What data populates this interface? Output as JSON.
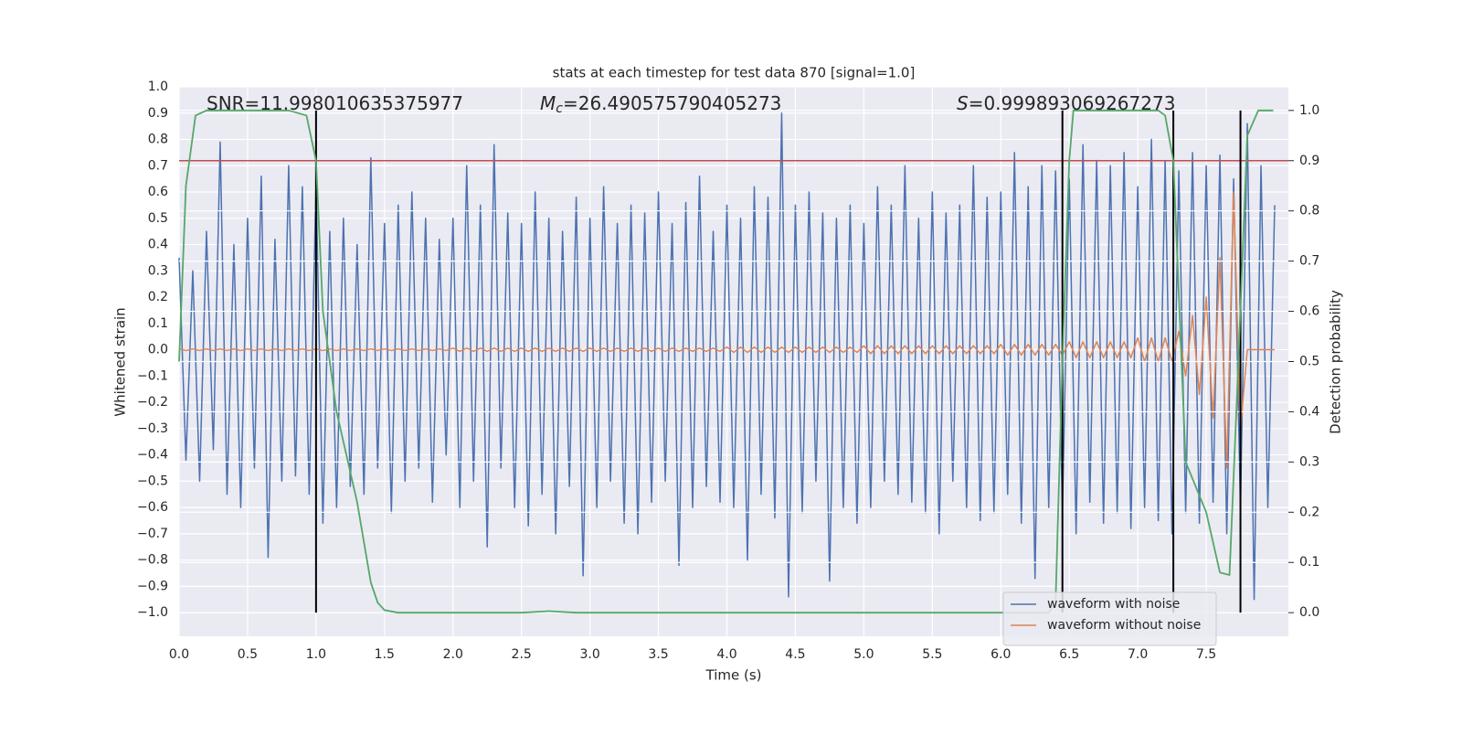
{
  "chart_data": {
    "type": "line",
    "title": "stats at each timestep for test data 870 [signal=1.0]",
    "xlabel": "Time (s)",
    "ylabel": "Whitened strain",
    "y2label": "Detection probability",
    "grid": true,
    "legend": "lower right",
    "xlim": [
      0,
      8.1
    ],
    "xticks": [
      {
        "value": 0,
        "label": "0.0"
      },
      {
        "value": 0.5,
        "label": "0.5"
      },
      {
        "value": 1,
        "label": "1.0"
      },
      {
        "value": 1.5,
        "label": "1.5"
      },
      {
        "value": 2,
        "label": "2.0"
      },
      {
        "value": 2.5,
        "label": "2.5"
      },
      {
        "value": 3,
        "label": "3.0"
      },
      {
        "value": 3.5,
        "label": "3.5"
      },
      {
        "value": 4,
        "label": "4.0"
      },
      {
        "value": 4.5,
        "label": "4.5"
      },
      {
        "value": 5,
        "label": "5.0"
      },
      {
        "value": 5.5,
        "label": "5.5"
      },
      {
        "value": 6,
        "label": "6.0"
      },
      {
        "value": 6.5,
        "label": "6.5"
      },
      {
        "value": 7,
        "label": "7.0"
      },
      {
        "value": 7.5,
        "label": "7.5"
      }
    ],
    "ylim": [
      -1.09,
      1.0
    ],
    "yticks": [
      {
        "value": -1,
        "label": "−1.0"
      },
      {
        "value": -0.9,
        "label": "−0.9"
      },
      {
        "value": -0.8,
        "label": "−0.8"
      },
      {
        "value": -0.7,
        "label": "−0.7"
      },
      {
        "value": -0.6,
        "label": "−0.6"
      },
      {
        "value": -0.5,
        "label": "−0.5"
      },
      {
        "value": -0.4,
        "label": "−0.4"
      },
      {
        "value": -0.3,
        "label": "−0.3"
      },
      {
        "value": -0.2,
        "label": "−0.2"
      },
      {
        "value": -0.1,
        "label": "−0.1"
      },
      {
        "value": 0,
        "label": "0.0"
      },
      {
        "value": 0.1,
        "label": "0.1"
      },
      {
        "value": 0.2,
        "label": "0.2"
      },
      {
        "value": 0.3,
        "label": "0.3"
      },
      {
        "value": 0.4,
        "label": "0.4"
      },
      {
        "value": 0.5,
        "label": "0.5"
      },
      {
        "value": 0.6,
        "label": "0.6"
      },
      {
        "value": 0.7,
        "label": "0.7"
      },
      {
        "value": 0.8,
        "label": "0.8"
      },
      {
        "value": 0.9,
        "label": "0.9"
      },
      {
        "value": 1,
        "label": "1.0"
      }
    ],
    "y2lim": [
      -0.047,
      1.047
    ],
    "y2ticks": [
      {
        "value": 0,
        "label": "0.0"
      },
      {
        "value": 0.1,
        "label": "0.1"
      },
      {
        "value": 0.2,
        "label": "0.2"
      },
      {
        "value": 0.3,
        "label": "0.3"
      },
      {
        "value": 0.4,
        "label": "0.4"
      },
      {
        "value": 0.5,
        "label": "0.5"
      },
      {
        "value": 0.6,
        "label": "0.6"
      },
      {
        "value": 0.7,
        "label": "0.7"
      },
      {
        "value": 0.8,
        "label": "0.8"
      },
      {
        "value": 0.9,
        "label": "0.9"
      },
      {
        "value": 1,
        "label": "1.0"
      }
    ],
    "x": [
      0,
      0.05,
      0.1,
      0.15,
      0.2,
      0.25,
      0.3,
      0.35,
      0.4,
      0.45,
      0.5,
      0.55,
      0.6,
      0.65,
      0.7,
      0.75,
      0.8,
      0.85,
      0.9,
      0.95,
      1,
      1.05,
      1.1,
      1.15,
      1.2,
      1.25,
      1.3,
      1.35,
      1.4,
      1.45,
      1.5,
      1.55,
      1.6,
      1.65,
      1.7,
      1.75,
      1.8,
      1.85,
      1.9,
      1.95,
      2,
      2.05,
      2.1,
      2.15,
      2.2,
      2.25,
      2.3,
      2.35,
      2.4,
      2.45,
      2.5,
      2.55,
      2.6,
      2.65,
      2.7,
      2.75,
      2.8,
      2.85,
      2.9,
      2.95,
      3,
      3.05,
      3.1,
      3.15,
      3.2,
      3.25,
      3.3,
      3.35,
      3.4,
      3.45,
      3.5,
      3.55,
      3.6,
      3.65,
      3.7,
      3.75,
      3.8,
      3.85,
      3.9,
      3.95,
      4,
      4.05,
      4.1,
      4.15,
      4.2,
      4.25,
      4.3,
      4.35,
      4.4,
      4.45,
      4.5,
      4.55,
      4.6,
      4.65,
      4.7,
      4.75,
      4.8,
      4.85,
      4.9,
      4.95,
      5,
      5.05,
      5.1,
      5.15,
      5.2,
      5.25,
      5.3,
      5.35,
      5.4,
      5.45,
      5.5,
      5.55,
      5.6,
      5.65,
      5.7,
      5.75,
      5.8,
      5.85,
      5.9,
      5.95,
      6,
      6.05,
      6.1,
      6.15,
      6.2,
      6.25,
      6.3,
      6.35,
      6.4,
      6.45,
      6.5,
      6.55,
      6.6,
      6.65,
      6.7,
      6.75,
      6.8,
      6.85,
      6.9,
      6.95,
      7,
      7.05,
      7.1,
      7.15,
      7.2,
      7.25,
      7.3,
      7.35,
      7.4,
      7.45,
      7.5,
      7.55,
      7.6,
      7.65,
      7.7,
      7.75,
      7.8,
      7.85,
      7.9,
      7.95,
      8
    ],
    "series": [
      {
        "name": "waveform with noise",
        "color": "#4c72b0",
        "values": [
          0.35,
          -0.42,
          0.3,
          -0.5,
          0.45,
          -0.38,
          0.79,
          -0.55,
          0.4,
          -0.6,
          0.5,
          -0.45,
          0.66,
          -0.79,
          0.42,
          -0.5,
          0.7,
          -0.48,
          0.62,
          -0.55,
          0.64,
          -0.66,
          0.45,
          -0.6,
          0.5,
          -0.52,
          0.4,
          -0.55,
          0.73,
          -0.45,
          0.48,
          -0.62,
          0.55,
          -0.5,
          0.6,
          -0.45,
          0.5,
          -0.58,
          0.42,
          -0.4,
          0.5,
          -0.6,
          0.7,
          -0.5,
          0.55,
          -0.75,
          0.78,
          -0.45,
          0.52,
          -0.6,
          0.48,
          -0.67,
          0.6,
          -0.55,
          0.5,
          -0.7,
          0.45,
          -0.52,
          0.58,
          -0.86,
          0.5,
          -0.6,
          0.62,
          -0.5,
          0.48,
          -0.66,
          0.55,
          -0.7,
          0.52,
          -0.58,
          0.6,
          -0.5,
          0.48,
          -0.82,
          0.56,
          -0.6,
          0.66,
          -0.52,
          0.45,
          -0.58,
          0.55,
          -0.6,
          0.5,
          -0.8,
          0.62,
          -0.55,
          0.58,
          -0.64,
          0.9,
          -0.94,
          0.55,
          -0.62,
          0.6,
          -0.5,
          0.52,
          -0.88,
          0.5,
          -0.6,
          0.55,
          -0.66,
          0.48,
          -0.6,
          0.62,
          -0.5,
          0.55,
          -0.55,
          0.7,
          -0.58,
          0.5,
          -0.62,
          0.6,
          -0.7,
          0.52,
          -0.5,
          0.55,
          -0.6,
          0.7,
          -0.65,
          0.58,
          -0.62,
          0.6,
          -0.55,
          0.75,
          -0.66,
          0.62,
          -0.87,
          0.7,
          -0.6,
          0.68,
          -0.62,
          0.65,
          -0.7,
          0.78,
          -0.58,
          0.72,
          -0.66,
          0.7,
          -0.62,
          0.75,
          -0.68,
          0.62,
          -0.6,
          0.8,
          -0.65,
          0.72,
          -0.7,
          0.68,
          -0.62,
          0.75,
          -0.66,
          0.7,
          -0.58,
          0.74,
          -0.7,
          0.65,
          -0.6,
          0.86,
          -0.95,
          0.7,
          -0.6,
          0.55
        ]
      },
      {
        "name": "waveform without noise",
        "color": "#dd8452",
        "values": [
          0.003,
          -0.003,
          0.003,
          -0.003,
          0.003,
          -0.003,
          0.003,
          -0.003,
          0.003,
          -0.003,
          0.003,
          -0.003,
          0.003,
          -0.003,
          0.003,
          -0.003,
          0.003,
          -0.003,
          0.003,
          -0.003,
          0.003,
          -0.003,
          0.003,
          -0.003,
          0.003,
          -0.003,
          0.003,
          -0.003,
          0.003,
          -0.003,
          0.003,
          -0.003,
          0.003,
          -0.003,
          0.003,
          -0.003,
          0.003,
          -0.003,
          0.003,
          -0.003,
          0.006,
          -0.006,
          0.006,
          -0.006,
          0.006,
          -0.006,
          0.006,
          -0.006,
          0.006,
          -0.006,
          0.006,
          -0.006,
          0.006,
          -0.006,
          0.006,
          -0.006,
          0.006,
          -0.006,
          0.006,
          -0.006,
          0.006,
          -0.006,
          0.006,
          -0.006,
          0.006,
          -0.006,
          0.006,
          -0.006,
          0.006,
          -0.006,
          0.006,
          -0.006,
          0.006,
          -0.006,
          0.006,
          -0.006,
          0.006,
          -0.006,
          0.006,
          -0.006,
          0.01,
          -0.01,
          0.01,
          -0.01,
          0.01,
          -0.01,
          0.01,
          -0.01,
          0.01,
          -0.01,
          0.01,
          -0.01,
          0.01,
          -0.01,
          0.01,
          -0.01,
          0.01,
          -0.01,
          0.01,
          -0.01,
          0.015,
          -0.015,
          0.015,
          -0.015,
          0.015,
          -0.015,
          0.015,
          -0.015,
          0.015,
          -0.015,
          0.015,
          -0.015,
          0.015,
          -0.015,
          0.015,
          -0.015,
          0.015,
          -0.015,
          0.015,
          -0.015,
          0.02,
          -0.02,
          0.02,
          -0.02,
          0.02,
          -0.02,
          0.02,
          -0.02,
          0.02,
          -0.02,
          0.03,
          -0.03,
          0.03,
          -0.03,
          0.03,
          -0.03,
          0.03,
          -0.03,
          0.03,
          -0.03,
          0.045,
          -0.045,
          0.045,
          -0.045,
          0.045,
          -0.045,
          0.07,
          -0.1,
          0.13,
          -0.17,
          0.2,
          -0.26,
          0.35,
          -0.45,
          0.6,
          -0.3,
          0,
          0,
          0,
          0,
          0
        ]
      },
      {
        "axis": "y2",
        "color": "#55a868",
        "x": [
          0,
          0.05,
          0.12,
          0.2,
          0.8,
          0.93,
          1,
          1.05,
          1.15,
          1.3,
          1.4,
          1.45,
          1.5,
          1.6,
          2.5,
          2.7,
          2.9,
          6.35,
          6.4,
          6.45,
          6.5,
          6.53,
          7.15,
          7.2,
          7.26,
          7.35,
          7.5,
          7.6,
          7.67,
          7.72,
          7.8,
          7.88,
          7.99
        ],
        "values": [
          0.5,
          0.85,
          0.99,
          1,
          1,
          0.99,
          0.9,
          0.6,
          0.4,
          0.22,
          0.06,
          0.02,
          0.005,
          0,
          0,
          0.003,
          0,
          0,
          0.02,
          0.5,
          0.9,
          1,
          1,
          0.99,
          0.9,
          0.3,
          0.2,
          0.08,
          0.075,
          0.4,
          0.95,
          1,
          1
        ]
      }
    ],
    "threshold": {
      "value": 0.9,
      "axis": "y2",
      "color": "#c44e52"
    },
    "vlines": {
      "x": [
        1.0,
        6.45,
        7.26,
        7.75
      ],
      "ymin": 0,
      "ymax": 1.0,
      "axis": "y2",
      "color": "#000000"
    },
    "annotations": [
      {
        "text": "SNR=11.998010635375977"
      },
      {
        "italic": "M",
        "sub": "c",
        "text": "=26.490575790405273"
      },
      {
        "italic": "S",
        "text": "=0.999893069267273"
      }
    ]
  }
}
